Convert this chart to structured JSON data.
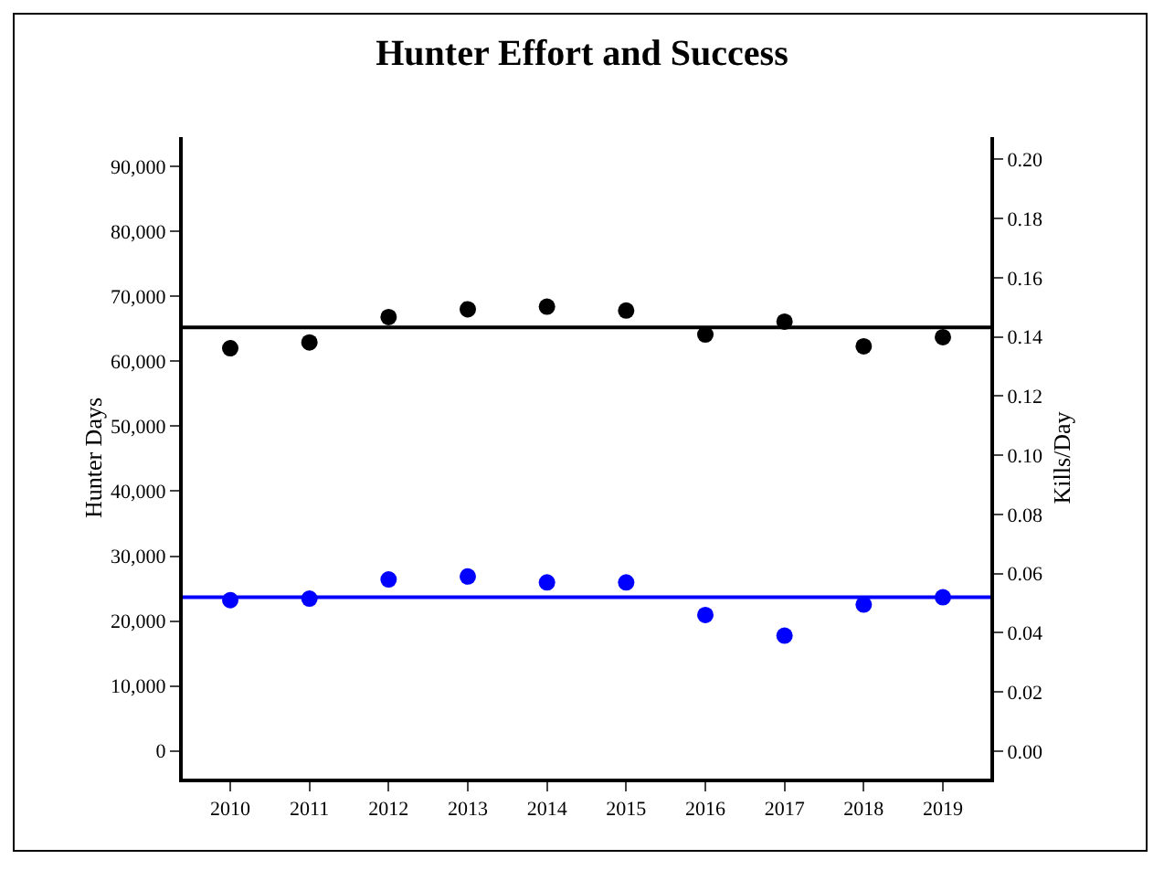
{
  "chart_data": {
    "type": "scatter",
    "title": "Hunter Effort and Success",
    "ylabel": "Hunter Days",
    "y2label": "Kills/Day",
    "categories": [
      "2010",
      "2011",
      "2012",
      "2013",
      "2014",
      "2015",
      "2016",
      "2017",
      "2018",
      "2019"
    ],
    "series": [
      {
        "color": "#000000",
        "values": [
          62000,
          62900,
          66800,
          68000,
          68400,
          67800,
          64100,
          66100,
          62300,
          63700
        ]
      },
      {
        "color": "#0000ff",
        "axis": "y2",
        "values": [
          0.051,
          0.0515,
          0.058,
          0.059,
          0.057,
          0.057,
          0.046,
          0.039,
          0.0495,
          0.052
        ]
      }
    ],
    "ylim": [
      -4250,
      94500
    ],
    "yticks": [
      {
        "value": 0,
        "label": "0"
      },
      {
        "value": 10000,
        "label": "10,000"
      },
      {
        "value": 20000,
        "label": "20,000"
      },
      {
        "value": 30000,
        "label": "30,000"
      },
      {
        "value": 40000,
        "label": "40,000"
      },
      {
        "value": 50000,
        "label": "50,000"
      },
      {
        "value": 60000,
        "label": "60,000"
      },
      {
        "value": 70000,
        "label": "70,000"
      },
      {
        "value": 80000,
        "label": "80,000"
      },
      {
        "value": 90000,
        "label": "90,000"
      }
    ],
    "y2lim": [
      -0.0093,
      0.2075
    ],
    "y2ticks": [
      {
        "value": 0,
        "label": "0.00"
      },
      {
        "value": 0.02,
        "label": "0.02"
      },
      {
        "value": 0.04,
        "label": "0.04"
      },
      {
        "value": 0.06,
        "label": "0.06"
      },
      {
        "value": 0.08,
        "label": "0.08"
      },
      {
        "value": 0.1,
        "label": "0.10"
      },
      {
        "value": 0.12,
        "label": "0.12"
      },
      {
        "value": 0.14,
        "label": "0.14"
      },
      {
        "value": 0.16,
        "label": "0.16"
      },
      {
        "value": 0.18,
        "label": "0.18"
      },
      {
        "value": 0.2,
        "label": "0.20"
      }
    ],
    "ref_lines": [
      {
        "axis": "y",
        "value": 65200,
        "color": "#000000"
      },
      {
        "axis": "y2",
        "value": 0.052,
        "color": "#0000ff"
      }
    ],
    "marker": "circle",
    "grid": false
  }
}
